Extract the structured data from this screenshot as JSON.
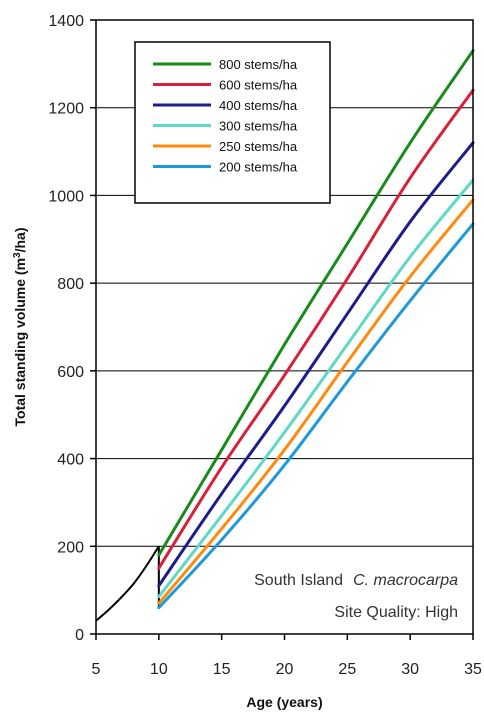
{
  "chart_data": {
    "type": "line",
    "title": "",
    "xlabel": "Age (years)",
    "ylabel_prefix": "Total standing volume (m",
    "ylabel_sup": "3",
    "ylabel_suffix": "/ha)",
    "xlim": [
      5,
      35
    ],
    "ylim": [
      0,
      1400
    ],
    "xticks": [
      5,
      10,
      15,
      20,
      25,
      30,
      35
    ],
    "yticks": [
      0,
      200,
      400,
      600,
      800,
      1000,
      1200,
      1400
    ],
    "grid": "horizontal",
    "legend_position": "top-left",
    "annotation_region": "South Island",
    "annotation_species": "C. macrocarpa",
    "annotation_site": "Site Quality: High",
    "pre_thinning": {
      "color": "#000000",
      "x": [
        5,
        6,
        7,
        8,
        9,
        10
      ],
      "y": [
        30,
        55,
        83,
        115,
        155,
        200
      ]
    },
    "series": [
      {
        "name": "800 stems/ha",
        "color": "#1a8a1a",
        "x": [
          10,
          15,
          20,
          25,
          30,
          35
        ],
        "y": [
          180,
          420,
          660,
          890,
          1120,
          1330
        ]
      },
      {
        "name": "600 stems/ha",
        "color": "#d8203a",
        "x": [
          10,
          15,
          20,
          25,
          30,
          35
        ],
        "y": [
          150,
          380,
          590,
          810,
          1040,
          1240
        ]
      },
      {
        "name": "400 stems/ha",
        "color": "#1c1c8c",
        "x": [
          10,
          15,
          20,
          25,
          30,
          35
        ],
        "y": [
          110,
          320,
          520,
          730,
          940,
          1120
        ]
      },
      {
        "name": "300 stems/ha",
        "color": "#5fd8c4",
        "x": [
          10,
          15,
          20,
          25,
          30,
          35
        ],
        "y": [
          85,
          270,
          460,
          660,
          860,
          1035
        ]
      },
      {
        "name": "250 stems/ha",
        "color": "#ff8a10",
        "x": [
          10,
          15,
          20,
          25,
          30,
          35
        ],
        "y": [
          70,
          240,
          420,
          620,
          815,
          990
        ]
      },
      {
        "name": "200 stems/ha",
        "color": "#1f9ad8",
        "x": [
          10,
          15,
          20,
          25,
          30,
          35
        ],
        "y": [
          60,
          215,
          385,
          575,
          760,
          935
        ]
      }
    ]
  }
}
